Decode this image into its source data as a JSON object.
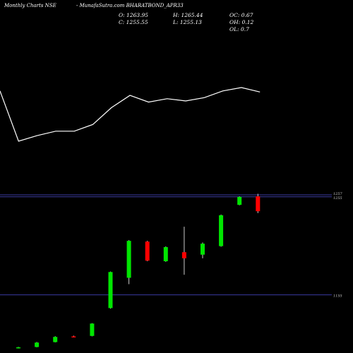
{
  "header": {
    "site": "Monthly Charts NSE",
    "symbol": "- MunafaSutra.com BHARATBOND_APR33",
    "open": "O: 1263.95",
    "high": "H: 1265.44",
    "oc": "OC: 0.67",
    "close": "C: 1255.55",
    "low": "L: 1255.13",
    "oh": "OH: 0.12",
    "ol": "OL: 0.7"
  },
  "colors": {
    "background": "#000000",
    "up": "#00e600",
    "down": "#ff0000",
    "line": "#ffffff",
    "level_line": "#3a3aa0"
  },
  "chart_data": [
    {
      "type": "line",
      "y": [
        78,
        33,
        38,
        42,
        42,
        48,
        63,
        74,
        68,
        71,
        69,
        72,
        78,
        81,
        77
      ]
    },
    {
      "type": "candlestick",
      "candles": [
        {
          "o": 1100.8,
          "h": 1101.9,
          "l": 1100.3,
          "c": 1101.5
        },
        {
          "o": 1101.8,
          "h": 1106.9,
          "l": 1101.5,
          "c": 1106.3
        },
        {
          "o": 1106.8,
          "h": 1112.8,
          "l": 1106.5,
          "c": 1112.1
        },
        {
          "o": 1112.6,
          "h": 1113.4,
          "l": 1111.9,
          "c": 1112.3
        },
        {
          "o": 1113.1,
          "h": 1126.1,
          "l": 1112.7,
          "c": 1125.7
        },
        {
          "o": 1141.5,
          "h": 1178.8,
          "l": 1141.0,
          "c": 1178.3
        },
        {
          "o": 1172.4,
          "h": 1210.8,
          "l": 1165.9,
          "c": 1210.1
        },
        {
          "o": 1209.3,
          "h": 1210.1,
          "l": 1189.3,
          "c": 1189.9
        },
        {
          "o": 1189.3,
          "h": 1204.4,
          "l": 1188.7,
          "c": 1203.7
        },
        {
          "o": 1198.5,
          "h": 1224.5,
          "l": 1175.5,
          "c": 1192.3
        },
        {
          "o": 1196.0,
          "h": 1208.4,
          "l": 1192.3,
          "c": 1207.2
        },
        {
          "o": 1204.7,
          "h": 1236.9,
          "l": 1204.1,
          "c": 1236.2
        },
        {
          "o": 1246.8,
          "h": 1255.5,
          "l": 1246.4,
          "c": 1254.9
        },
        {
          "o": 1255.5,
          "h": 1258.1,
          "l": 1238.4,
          "c": 1240.3
        }
      ],
      "levels": [
        {
          "value": 1257,
          "label": "1257"
        },
        {
          "value": 1255,
          "label": "1255"
        },
        {
          "value": 1155,
          "label": "1155"
        }
      ]
    }
  ]
}
